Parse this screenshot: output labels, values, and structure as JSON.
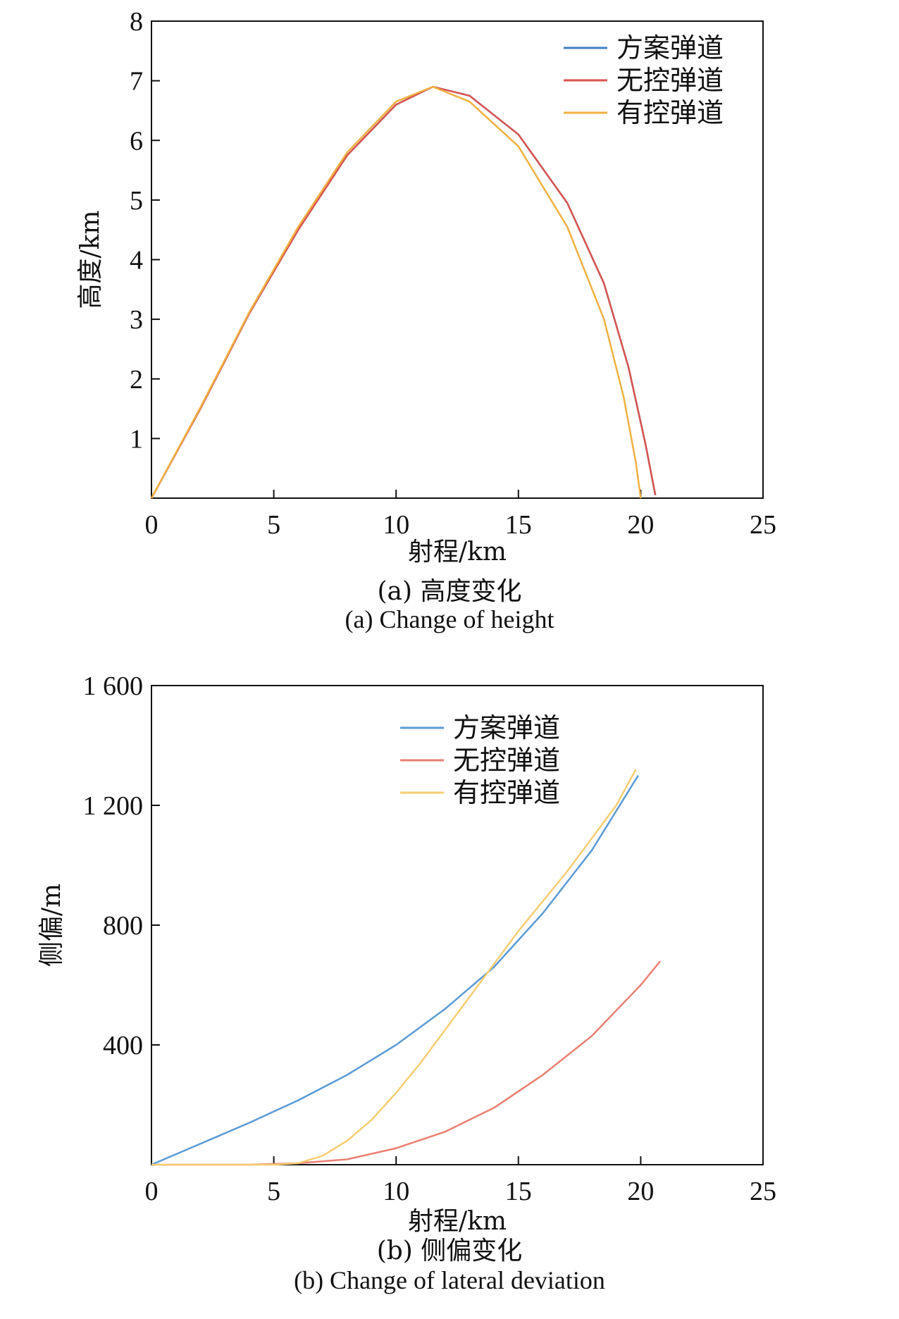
{
  "chart_data": [
    {
      "type": "line",
      "caption_cn": "(a) 高度变化",
      "caption_en": "(a) Change of height",
      "xlabel": "射程/km",
      "ylabel": "高度/km",
      "xlim": [
        0,
        25
      ],
      "ylim": [
        0,
        8
      ],
      "xticks": [
        0,
        5,
        10,
        15,
        20,
        25
      ],
      "yticks": [
        1,
        2,
        3,
        4,
        5,
        6,
        7,
        8
      ],
      "xtick_labels": [
        "0",
        "5",
        "10",
        "15",
        "20",
        "25"
      ],
      "ytick_labels": [
        "1",
        "2",
        "3",
        "4",
        "5",
        "6",
        "7",
        "8"
      ],
      "legend_position": "top-right",
      "series": [
        {
          "name": "方案弹道",
          "color": "#3f7fc4",
          "points": [
            [
              0,
              0
            ],
            [
              2,
              1.5
            ],
            [
              4,
              3.1
            ],
            [
              6,
              4.5
            ],
            [
              8,
              5.75
            ],
            [
              10,
              6.6
            ],
            [
              11.5,
              6.9
            ],
            [
              13,
              6.75
            ],
            [
              15,
              6.1
            ],
            [
              17,
              4.95
            ],
            [
              18.5,
              3.6
            ],
            [
              19.5,
              2.2
            ],
            [
              20.2,
              0.9
            ],
            [
              20.6,
              0.05
            ]
          ]
        },
        {
          "name": "无控弹道",
          "color": "#d9534f",
          "points": [
            [
              0,
              0
            ],
            [
              2,
              1.5
            ],
            [
              4,
              3.1
            ],
            [
              6,
              4.5
            ],
            [
              8,
              5.75
            ],
            [
              10,
              6.6
            ],
            [
              11.5,
              6.9
            ],
            [
              13,
              6.75
            ],
            [
              15,
              6.1
            ],
            [
              17,
              4.95
            ],
            [
              18.5,
              3.6
            ],
            [
              19.5,
              2.2
            ],
            [
              20.2,
              0.9
            ],
            [
              20.6,
              0.05
            ]
          ]
        },
        {
          "name": "有控弹道",
          "color": "#f0b040",
          "points": [
            [
              0,
              0
            ],
            [
              2,
              1.52
            ],
            [
              4,
              3.12
            ],
            [
              6,
              4.55
            ],
            [
              8,
              5.8
            ],
            [
              10,
              6.65
            ],
            [
              11.5,
              6.9
            ],
            [
              13,
              6.65
            ],
            [
              15,
              5.9
            ],
            [
              17,
              4.55
            ],
            [
              18.5,
              3.0
            ],
            [
              19.3,
              1.7
            ],
            [
              19.8,
              0.6
            ],
            [
              20,
              0
            ]
          ]
        }
      ]
    },
    {
      "type": "line",
      "caption_cn": "(b) 侧偏变化",
      "caption_en": "(b) Change of lateral deviation",
      "xlabel": "射程/km",
      "ylabel": "侧偏/m",
      "xlim": [
        0,
        25
      ],
      "ylim": [
        0,
        1600
      ],
      "xticks": [
        0,
        5,
        10,
        15,
        20,
        25
      ],
      "yticks": [
        400,
        800,
        1200,
        1600
      ],
      "xtick_labels": [
        "0",
        "5",
        "10",
        "15",
        "20",
        "25"
      ],
      "ytick_labels": [
        "400",
        "800",
        "1 200",
        "1 600"
      ],
      "legend_position": "top-center",
      "series": [
        {
          "name": "方案弹道",
          "color": "#5b9bd5",
          "points": [
            [
              0,
              0
            ],
            [
              2,
              70
            ],
            [
              4,
              140
            ],
            [
              6,
              215
            ],
            [
              8,
              300
            ],
            [
              10,
              400
            ],
            [
              12,
              520
            ],
            [
              14,
              660
            ],
            [
              16,
              840
            ],
            [
              18,
              1050
            ],
            [
              19.9,
              1300
            ]
          ]
        },
        {
          "name": "无控弹道",
          "color": "#e98072",
          "points": [
            [
              0,
              0
            ],
            [
              4,
              0
            ],
            [
              6,
              5
            ],
            [
              8,
              18
            ],
            [
              10,
              55
            ],
            [
              12,
              110
            ],
            [
              14,
              190
            ],
            [
              16,
              300
            ],
            [
              18,
              430
            ],
            [
              20,
              600
            ],
            [
              20.8,
              680
            ]
          ]
        },
        {
          "name": "有控弹道",
          "color": "#f6cd72",
          "points": [
            [
              0,
              0
            ],
            [
              5,
              0
            ],
            [
              6,
              5
            ],
            [
              7,
              30
            ],
            [
              8,
              80
            ],
            [
              9,
              150
            ],
            [
              10,
              240
            ],
            [
              11,
              340
            ],
            [
              12,
              450
            ],
            [
              13,
              560
            ],
            [
              14,
              670
            ],
            [
              15,
              780
            ],
            [
              16,
              880
            ],
            [
              17,
              980
            ],
            [
              18,
              1090
            ],
            [
              19,
              1200
            ],
            [
              19.8,
              1320
            ]
          ]
        }
      ]
    }
  ]
}
